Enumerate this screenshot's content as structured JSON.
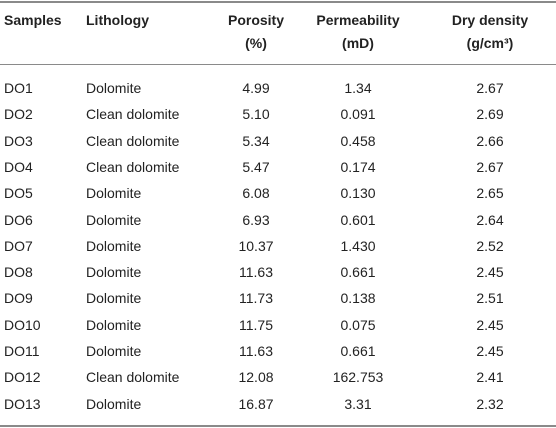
{
  "table": {
    "header": [
      [
        "Samples"
      ],
      [
        "Lithology"
      ],
      [
        "Porosity",
        "(%)"
      ],
      [
        "Permeability",
        "(mD)"
      ],
      [
        "Dry density",
        "(g/cm³)"
      ]
    ],
    "rows": [
      [
        "DO1",
        "Dolomite",
        "4.99",
        "1.34",
        "2.67"
      ],
      [
        "DO2",
        "Clean dolomite",
        "5.10",
        "0.091",
        "2.69"
      ],
      [
        "DO3",
        "Clean dolomite",
        "5.34",
        "0.458",
        "2.66"
      ],
      [
        "DO4",
        "Clean dolomite",
        "5.47",
        "0.174",
        "2.67"
      ],
      [
        "DO5",
        "Dolomite",
        "6.08",
        "0.130",
        "2.65"
      ],
      [
        "DO6",
        "Dolomite",
        "6.93",
        "0.601",
        "2.64"
      ],
      [
        "DO7",
        "Dolomite",
        "10.37",
        "1.430",
        "2.52"
      ],
      [
        "DO8",
        "Dolomite",
        "11.63",
        "0.661",
        "2.45"
      ],
      [
        "DO9",
        "Dolomite",
        "11.73",
        "0.138",
        "2.51"
      ],
      [
        "DO10",
        "Dolomite",
        "11.75",
        "0.075",
        "2.45"
      ],
      [
        "DO11",
        "Dolomite",
        "11.63",
        "0.661",
        "2.45"
      ],
      [
        "DO12",
        "Clean dolomite",
        "12.08",
        "162.753",
        "2.41"
      ],
      [
        "DO13",
        "Dolomite",
        "16.87",
        "3.31",
        "2.32"
      ]
    ]
  }
}
